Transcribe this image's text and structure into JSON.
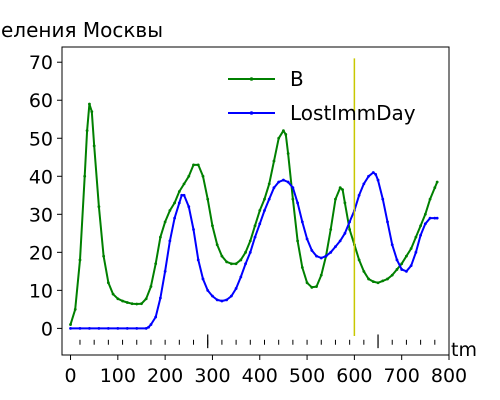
{
  "chart_data": {
    "type": "line",
    "title": "селения Москвы",
    "xlabel": "tm",
    "ylabel": "",
    "xlim": [
      -18,
      800
    ],
    "ylim": [
      -7,
      74
    ],
    "x_ticks": [
      0,
      100,
      200,
      300,
      400,
      500,
      600,
      700,
      800
    ],
    "y_ticks": [
      0,
      10,
      20,
      30,
      40,
      50,
      60,
      70
    ],
    "legend_position": "top-right",
    "grid": false,
    "series": [
      {
        "name": "B",
        "color": "#008000",
        "marker": "point",
        "x": [
          0,
          10,
          20,
          30,
          35,
          40,
          45,
          50,
          60,
          70,
          80,
          90,
          100,
          110,
          120,
          130,
          140,
          150,
          160,
          170,
          180,
          190,
          200,
          210,
          220,
          230,
          240,
          250,
          260,
          270,
          280,
          290,
          300,
          310,
          320,
          330,
          340,
          350,
          360,
          370,
          380,
          390,
          400,
          410,
          420,
          430,
          440,
          450,
          455,
          460,
          470,
          480,
          490,
          500,
          510,
          520,
          530,
          540,
          550,
          560,
          570,
          575,
          580,
          590,
          600,
          610,
          620,
          630,
          640,
          650,
          660,
          670,
          680,
          690,
          700,
          710,
          720,
          730,
          740,
          750,
          760,
          770,
          775
        ],
        "values": [
          1,
          5,
          18,
          40,
          52,
          59,
          57,
          48,
          32,
          19,
          12,
          9,
          7.8,
          7.2,
          6.8,
          6.5,
          6.4,
          6.5,
          7.8,
          11,
          17,
          24,
          28,
          31,
          33,
          36,
          38,
          40,
          43,
          43,
          40,
          34,
          27,
          22,
          19,
          17.5,
          17,
          17,
          18,
          20,
          23,
          27,
          31,
          34,
          38,
          44,
          50,
          52,
          51,
          46,
          34,
          23,
          16,
          12,
          10.8,
          11,
          14,
          19,
          26,
          34,
          37,
          36.5,
          33,
          26,
          22,
          18,
          15,
          13,
          12.3,
          12,
          12.5,
          13,
          14,
          15.5,
          17,
          19,
          21,
          24,
          27,
          30,
          34,
          37,
          38.5
        ]
      },
      {
        "name": "LostImmDay",
        "color": "#0000ff",
        "marker": "point",
        "x": [
          0,
          20,
          40,
          60,
          80,
          100,
          120,
          140,
          160,
          165,
          170,
          180,
          190,
          200,
          210,
          220,
          230,
          235,
          240,
          250,
          260,
          270,
          280,
          290,
          300,
          310,
          320,
          330,
          340,
          350,
          360,
          370,
          380,
          390,
          400,
          410,
          420,
          430,
          440,
          450,
          460,
          470,
          480,
          490,
          500,
          510,
          520,
          530,
          540,
          550,
          560,
          570,
          580,
          590,
          600,
          610,
          620,
          630,
          640,
          645,
          650,
          660,
          670,
          680,
          690,
          700,
          710,
          720,
          730,
          740,
          750,
          760,
          770,
          775
        ],
        "values": [
          0,
          0,
          0,
          0,
          0,
          0,
          0,
          0,
          0,
          0.3,
          1,
          3,
          8,
          15,
          23,
          29,
          33,
          35,
          35,
          32,
          26,
          18,
          13,
          10,
          8.5,
          7.5,
          7.2,
          7.5,
          8.5,
          10.5,
          13.5,
          17,
          20,
          24,
          27.5,
          31,
          34,
          37,
          38.5,
          39,
          38.5,
          37,
          33,
          28,
          23.5,
          20.5,
          19,
          18.5,
          19,
          20,
          21.5,
          23,
          25,
          28,
          31,
          35,
          38,
          40,
          41,
          40.5,
          39,
          34,
          28,
          22,
          18,
          15.5,
          15,
          16.5,
          20,
          24.5,
          27.5,
          29,
          29,
          29
        ]
      }
    ],
    "annotations": {
      "vertical_marker": {
        "x": 600,
        "y_range": [
          -2,
          71
        ],
        "color": "#c8c800"
      },
      "event_ticks": {
        "x": [
          20,
          50,
          80,
          110,
          140,
          170,
          200,
          230,
          260,
          290,
          320,
          350,
          380,
          410,
          440,
          470,
          500,
          530,
          560,
          590,
          620,
          650,
          680,
          710,
          740,
          770
        ],
        "y_range": [
          -4.3,
          -3.0
        ],
        "long_ticks_x": [
          290,
          650
        ],
        "long_y_range": [
          -5.2,
          -1.6
        ]
      }
    }
  }
}
